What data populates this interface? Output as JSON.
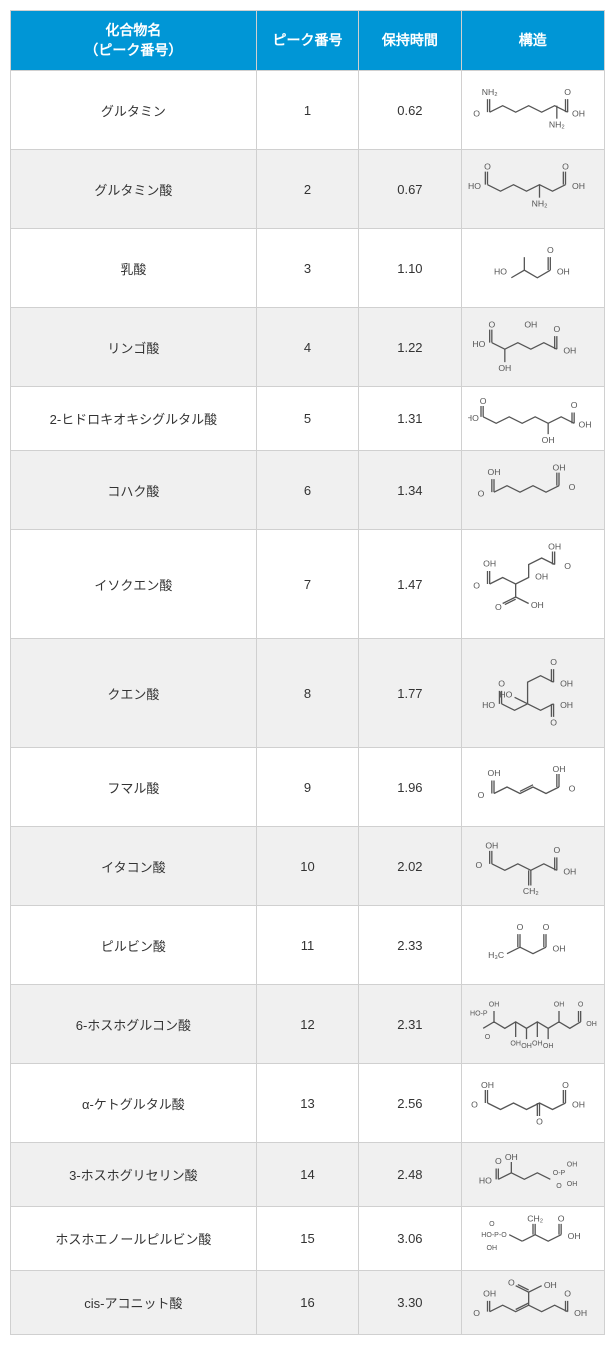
{
  "header": {
    "compound_name": "化合物名",
    "peak_number_sub": "（ピーク番号）",
    "peak_number": "ピーク番号",
    "retention_time": "保持時間",
    "structure": "構造"
  },
  "colors": {
    "header_bg": "#0096d6",
    "header_text": "#ffffff",
    "row_odd": "#ffffff",
    "row_even": "#f0f0f0",
    "border": "#d0d0d0",
    "text": "#333333",
    "bond": "#555555"
  },
  "rows": [
    {
      "name": "グルタミン",
      "peak": "1",
      "rt": "0.62",
      "struct": "glutamine",
      "h": "norm"
    },
    {
      "name": "グルタミン酸",
      "peak": "2",
      "rt": "0.67",
      "struct": "glutamate",
      "h": "norm"
    },
    {
      "name": "乳酸",
      "peak": "3",
      "rt": "1.10",
      "struct": "lactate",
      "h": "norm"
    },
    {
      "name": "リンゴ酸",
      "peak": "4",
      "rt": "1.22",
      "struct": "malate",
      "h": "norm"
    },
    {
      "name": "2-ヒドロキオキシグルタル酸",
      "peak": "5",
      "rt": "1.31",
      "struct": "hydroxyglutarate",
      "h": "short"
    },
    {
      "name": "コハク酸",
      "peak": "6",
      "rt": "1.34",
      "struct": "succinate",
      "h": "norm"
    },
    {
      "name": "イソクエン酸",
      "peak": "7",
      "rt": "1.47",
      "struct": "isocitrate",
      "h": "tall"
    },
    {
      "name": "クエン酸",
      "peak": "8",
      "rt": "1.77",
      "struct": "citrate",
      "h": "tall"
    },
    {
      "name": "フマル酸",
      "peak": "9",
      "rt": "1.96",
      "struct": "fumarate",
      "h": "norm"
    },
    {
      "name": "イタコン酸",
      "peak": "10",
      "rt": "2.02",
      "struct": "itaconate",
      "h": "norm"
    },
    {
      "name": "ピルビン酸",
      "peak": "11",
      "rt": "2.33",
      "struct": "pyruvate",
      "h": "norm"
    },
    {
      "name": "6-ホスホグルコン酸",
      "peak": "12",
      "rt": "2.31",
      "struct": "phosphogluconate",
      "h": "norm"
    },
    {
      "name": "α-ケトグルタル酸",
      "peak": "13",
      "rt": "2.56",
      "struct": "ketoglutarate",
      "h": "norm"
    },
    {
      "name": "3-ホスホグリセリン酸",
      "peak": "14",
      "rt": "2.48",
      "struct": "phosphoglycerate",
      "h": "short"
    },
    {
      "name": "ホスホエノールピルビン酸",
      "peak": "15",
      "rt": "3.06",
      "struct": "pep",
      "h": "short"
    },
    {
      "name": "cis-アコニット酸",
      "peak": "16",
      "rt": "3.30",
      "struct": "cisaconitate",
      "h": "short"
    }
  ]
}
